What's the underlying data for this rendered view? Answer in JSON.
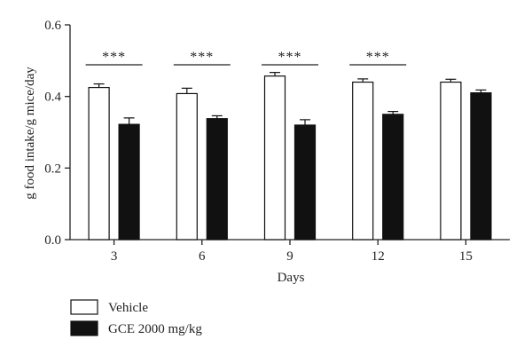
{
  "chart_data": {
    "type": "bar",
    "title": "",
    "xlabel": "Days",
    "ylabel": "g food intake/g mice/day",
    "categories": [
      "3",
      "6",
      "9",
      "12",
      "15"
    ],
    "ylim": [
      0,
      0.6
    ],
    "yticks": [
      "0.0",
      "0.2",
      "0.4",
      "0.6"
    ],
    "grid": false,
    "legend_position": "bottom-left",
    "series": [
      {
        "name": "Vehicle",
        "color": "#ffffff",
        "values": [
          0.425,
          0.408,
          0.457,
          0.44,
          0.44
        ],
        "errors": [
          0.01,
          0.015,
          0.01,
          0.009,
          0.008
        ]
      },
      {
        "name": "GCE 2000 mg/kg",
        "color": "#111111",
        "values": [
          0.322,
          0.338,
          0.32,
          0.35,
          0.41
        ],
        "errors": [
          0.018,
          0.008,
          0.015,
          0.008,
          0.008
        ]
      }
    ],
    "significance": [
      {
        "category": "3",
        "label": "***"
      },
      {
        "category": "6",
        "label": "***"
      },
      {
        "category": "9",
        "label": "***"
      },
      {
        "category": "12",
        "label": "***"
      }
    ]
  }
}
